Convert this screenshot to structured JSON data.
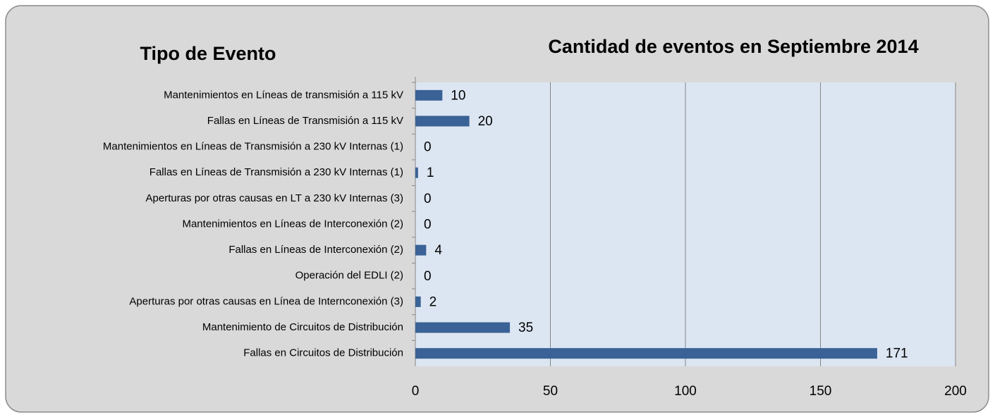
{
  "chart_data": {
    "type": "bar",
    "orientation": "horizontal",
    "title": "Cantidad de eventos en Septiembre 2014",
    "ylabel": "Tipo de Evento",
    "categories": [
      "Mantenimientos en Líneas de transmisión a 115 kV",
      "Fallas en Líneas de Transmisión a 115 kV",
      "Mantenimientos en Líneas de Transmisión a 230 kV Internas (1)",
      "Fallas en Líneas de Transmisión a 230 kV Internas (1)",
      "Aperturas por otras causas en LT a 230 kV Internas (3)",
      "Mantenimientos en Líneas de Interconexión (2)",
      "Fallas en Líneas de Interconexión (2)",
      "Operación del EDLI (2)",
      "Aperturas por otras causas en Línea de Internconexión (3)",
      "Mantenimiento de Circuitos de Distribución",
      "Fallas en Circuitos de Distribución"
    ],
    "values": [
      10,
      20,
      0,
      1,
      0,
      0,
      4,
      0,
      2,
      35,
      171
    ],
    "color": "#3a6296",
    "xlim": [
      0,
      200
    ],
    "xticks": [
      0,
      50,
      100,
      150,
      200
    ],
    "grid": true
  }
}
